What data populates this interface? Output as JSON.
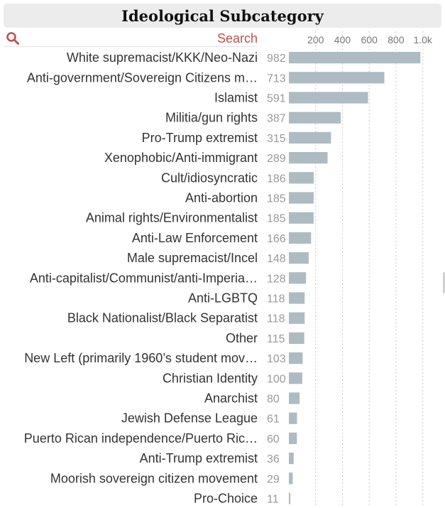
{
  "header": {
    "title": "Ideological Subcategory"
  },
  "search": {
    "label": "Search",
    "icon": "search-icon"
  },
  "colors": {
    "bar": "#aebbc3",
    "accent": "#c0504d",
    "header_bg": "#ececec"
  },
  "chart_data": {
    "type": "bar",
    "orientation": "horizontal",
    "title": "Ideological Subcategory",
    "xlim": [
      0,
      1150
    ],
    "x_ticks": [
      200,
      400,
      600,
      800,
      1000
    ],
    "x_tick_labels": [
      "200",
      "400",
      "600",
      "800",
      "1.0k"
    ],
    "grid": "vertical dotted",
    "categories": [
      "White supremacist/KKK/Neo-Nazi",
      "Anti-government/Sovereign Citizens m…",
      "Islamist",
      "Militia/gun rights",
      "Pro-Trump extremist",
      "Xenophobic/Anti-immigrant",
      "Cult/idiosyncratic",
      "Anti-abortion",
      "Animal rights/Environmentalist",
      "Anti-Law Enforcement",
      "Male supremacist/Incel",
      "Anti-capitalist/Communist/anti-Imperia…",
      "Anti-LGBTQ",
      "Black Nationalist/Black Separatist",
      "Other",
      "New Left (primarily 1960’s student mov…",
      "Christian Identity",
      "Anarchist",
      "Jewish Defense League",
      "Puerto Rican independence/Puerto Ric…",
      "Anti-Trump extremist",
      "Moorish sovereign citizen movement",
      "Pro-Choice"
    ],
    "values": [
      982,
      713,
      591,
      387,
      315,
      289,
      186,
      185,
      185,
      166,
      148,
      128,
      118,
      118,
      115,
      103,
      100,
      80,
      61,
      60,
      36,
      29,
      11
    ]
  }
}
